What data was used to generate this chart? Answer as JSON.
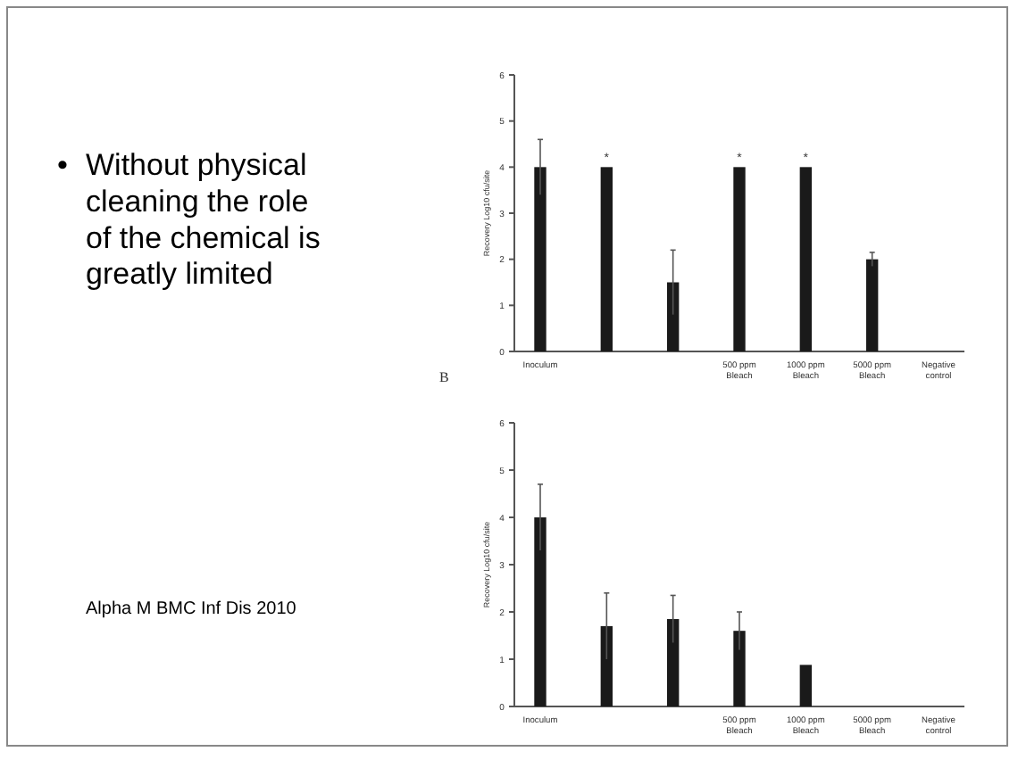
{
  "chart_data": [
    {
      "type": "bar",
      "ylabel": "Recovery Log10 cfu/site",
      "categories": [
        "Inoculum",
        null,
        null,
        "500 ppm Bleach",
        "1000 ppm Bleach",
        "5000 ppm Bleach",
        "Negative control"
      ],
      "values": [
        4,
        4,
        1.5,
        4,
        4,
        2,
        0
      ],
      "errors": [
        0.6,
        null,
        0.7,
        null,
        null,
        0.15,
        null
      ],
      "value_labels": [
        null,
        "*",
        null,
        "*",
        "*",
        null,
        null
      ],
      "color": "#1a1a1a",
      "ylim": [
        0,
        6
      ],
      "yticks": [
        0,
        1,
        2,
        3,
        4,
        5,
        6
      ],
      "annotations": [
        "• Without physical cleaning the role of the chemical is greatly limited"
      ]
    },
    {
      "type": "bar",
      "title": "B",
      "ylabel": "Recovery Log10 cfu/site",
      "categories": [
        "Inoculum",
        null,
        null,
        "500 ppm Bleach",
        "1000 ppm Bleach",
        "5000 ppm Bleach",
        "Negative control"
      ],
      "values": [
        4,
        1.7,
        1.85,
        1.6,
        0.88,
        0,
        0
      ],
      "errors": [
        0.7,
        0.7,
        0.5,
        0.4,
        null,
        null,
        null
      ],
      "color": "#1a1a1a",
      "ylim": [
        0,
        6
      ],
      "yticks": [
        0,
        1,
        2,
        3,
        4,
        5,
        6
      ],
      "annotations": [
        "Alpha M BMC Inf Dis 2010"
      ]
    }
  ]
}
